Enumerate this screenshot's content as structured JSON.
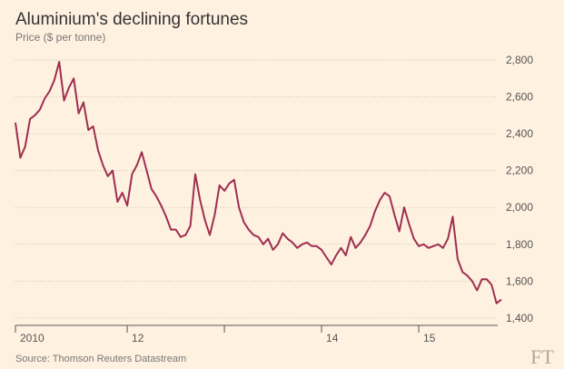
{
  "chart_data": {
    "type": "line",
    "title": "Aluminium's declining fortunes",
    "subtitle": "Price ($ per tonne)",
    "source": "Source: Thomson Reuters Datastream",
    "logo": "FT",
    "x": [
      2010.85,
      2010.9,
      2010.95,
      2011.0,
      2011.05,
      2011.1,
      2011.15,
      2011.2,
      2011.25,
      2011.3,
      2011.35,
      2011.4,
      2011.45,
      2011.5,
      2011.55,
      2011.6,
      2011.65,
      2011.7,
      2011.75,
      2011.8,
      2011.85,
      2011.9,
      2011.95,
      2012.0,
      2012.05,
      2012.1,
      2012.15,
      2012.2,
      2012.25,
      2012.3,
      2012.35,
      2012.4,
      2012.45,
      2012.5,
      2012.55,
      2012.6,
      2012.65,
      2012.7,
      2012.75,
      2012.8,
      2012.85,
      2012.9,
      2012.95,
      2013.0,
      2013.05,
      2013.1,
      2013.15,
      2013.2,
      2013.25,
      2013.3,
      2013.35,
      2013.4,
      2013.45,
      2013.5,
      2013.55,
      2013.6,
      2013.65,
      2013.7,
      2013.75,
      2013.8,
      2013.85,
      2013.9,
      2013.95,
      2014.0,
      2014.05,
      2014.1,
      2014.15,
      2014.2,
      2014.25,
      2014.3,
      2014.35,
      2014.4,
      2014.45,
      2014.5,
      2014.55,
      2014.6,
      2014.65,
      2014.7,
      2014.75,
      2014.8,
      2014.85,
      2014.9,
      2014.95,
      2015.0,
      2015.05,
      2015.1,
      2015.15,
      2015.2,
      2015.25,
      2015.3,
      2015.35,
      2015.4,
      2015.45,
      2015.5,
      2015.55,
      2015.6,
      2015.65,
      2015.7,
      2015.75,
      2015.8,
      2015.85
    ],
    "series": [
      {
        "name": "Aluminium",
        "color": "#9e2f50",
        "values": [
          2460,
          2270,
          2330,
          2480,
          2500,
          2530,
          2590,
          2630,
          2690,
          2790,
          2580,
          2650,
          2700,
          2510,
          2570,
          2420,
          2440,
          2310,
          2230,
          2170,
          2200,
          2030,
          2080,
          2010,
          2180,
          2230,
          2300,
          2200,
          2100,
          2060,
          2010,
          1950,
          1880,
          1880,
          1840,
          1850,
          1900,
          2180,
          2040,
          1930,
          1850,
          1960,
          2120,
          2090,
          2130,
          2150,
          2000,
          1920,
          1880,
          1850,
          1840,
          1800,
          1830,
          1770,
          1800,
          1860,
          1830,
          1810,
          1780,
          1800,
          1810,
          1790,
          1790,
          1770,
          1730,
          1690,
          1740,
          1780,
          1740,
          1840,
          1780,
          1810,
          1850,
          1900,
          1980,
          2040,
          2080,
          2060,
          1960,
          1870,
          2000,
          1910,
          1830,
          1790,
          1800,
          1780,
          1790,
          1800,
          1780,
          1830,
          1950,
          1720,
          1650,
          1630,
          1600,
          1550,
          1610,
          1610,
          1580,
          1480,
          1500
        ]
      }
    ],
    "xlim": [
      2010.85,
      2015.85
    ],
    "xticks": [
      {
        "value": 2010.85,
        "label": "2010"
      },
      {
        "value": 2012,
        "label": "12"
      },
      {
        "value": 2013,
        "label": null
      },
      {
        "value": 2014,
        "label": "14"
      },
      {
        "value": 2015,
        "label": "15"
      }
    ],
    "ylim": [
      1360,
      2800
    ],
    "yticks": [
      {
        "value": 1400,
        "label": "1,400"
      },
      {
        "value": 1600,
        "label": "1,600"
      },
      {
        "value": 1800,
        "label": "1,800"
      },
      {
        "value": 2000,
        "label": "2,000"
      },
      {
        "value": 2200,
        "label": "2,200"
      },
      {
        "value": 2400,
        "label": "2,400"
      },
      {
        "value": 2600,
        "label": "2,600"
      },
      {
        "value": 2800,
        "label": "2,800"
      }
    ],
    "grid": true
  }
}
